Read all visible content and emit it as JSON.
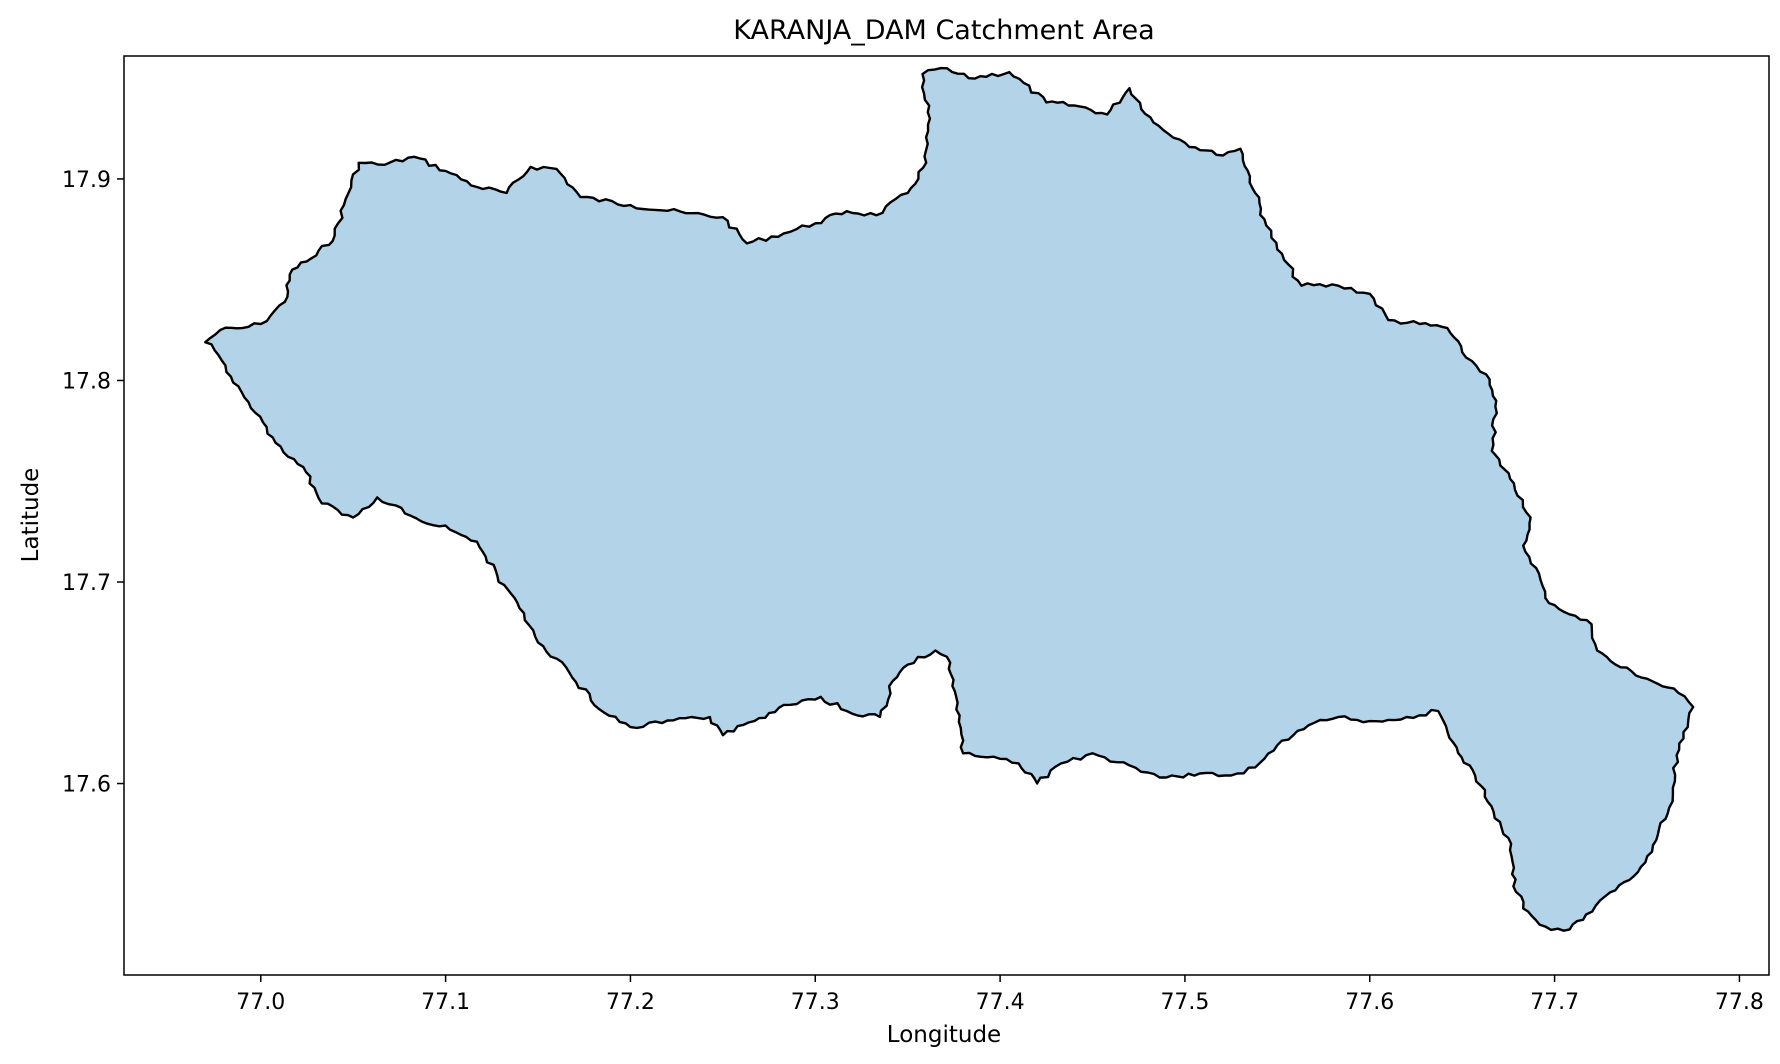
{
  "chart_data": {
    "type": "map",
    "title": "KARANJA_DAM Catchment Area",
    "xlabel": "Longitude",
    "ylabel": "Latitude",
    "xlim": [
      76.926,
      77.816
    ],
    "ylim": [
      17.505,
      17.961
    ],
    "xticks": [
      77.0,
      77.1,
      77.2,
      77.3,
      77.4,
      77.5,
      77.6,
      77.7,
      77.8
    ],
    "xtick_labels": [
      "77.0",
      "77.1",
      "77.2",
      "77.3",
      "77.4",
      "77.5",
      "77.6",
      "77.7",
      "77.8"
    ],
    "yticks": [
      17.6,
      17.7,
      17.8,
      17.9
    ],
    "ytick_labels": [
      "17.6",
      "17.7",
      "17.8",
      "17.9"
    ],
    "grid": false,
    "fill_color": "#b3d4e8",
    "edge_color": "#000000",
    "boundary": [
      [
        76.97,
        17.819
      ],
      [
        76.978,
        17.825
      ],
      [
        76.99,
        17.826
      ],
      [
        77.0,
        17.828
      ],
      [
        77.013,
        17.839
      ],
      [
        77.017,
        17.855
      ],
      [
        77.03,
        17.862
      ],
      [
        77.04,
        17.872
      ],
      [
        77.045,
        17.887
      ],
      [
        77.053,
        17.908
      ],
      [
        77.067,
        17.907
      ],
      [
        77.083,
        17.911
      ],
      [
        77.1,
        17.904
      ],
      [
        77.117,
        17.896
      ],
      [
        77.133,
        17.893
      ],
      [
        77.146,
        17.906
      ],
      [
        77.16,
        17.905
      ],
      [
        77.173,
        17.891
      ],
      [
        77.2,
        17.887
      ],
      [
        77.23,
        17.883
      ],
      [
        77.25,
        17.881
      ],
      [
        77.263,
        17.868
      ],
      [
        77.283,
        17.873
      ],
      [
        77.3,
        17.878
      ],
      [
        77.317,
        17.884
      ],
      [
        77.333,
        17.882
      ],
      [
        77.35,
        17.893
      ],
      [
        77.36,
        17.908
      ],
      [
        77.362,
        17.93
      ],
      [
        77.358,
        17.952
      ],
      [
        77.368,
        17.955
      ],
      [
        77.383,
        17.95
      ],
      [
        77.405,
        17.953
      ],
      [
        77.425,
        17.938
      ],
      [
        77.443,
        17.936
      ],
      [
        77.458,
        17.932
      ],
      [
        77.47,
        17.945
      ],
      [
        77.483,
        17.928
      ],
      [
        77.5,
        17.918
      ],
      [
        77.517,
        17.912
      ],
      [
        77.53,
        17.915
      ],
      [
        77.538,
        17.893
      ],
      [
        77.543,
        17.88
      ],
      [
        77.55,
        17.865
      ],
      [
        77.563,
        17.847
      ],
      [
        77.583,
        17.847
      ],
      [
        77.6,
        17.843
      ],
      [
        77.61,
        17.83
      ],
      [
        77.627,
        17.828
      ],
      [
        77.642,
        17.826
      ],
      [
        77.65,
        17.814
      ],
      [
        77.663,
        17.803
      ],
      [
        77.668,
        17.787
      ],
      [
        77.666,
        17.765
      ],
      [
        77.678,
        17.749
      ],
      [
        77.687,
        17.732
      ],
      [
        77.683,
        17.718
      ],
      [
        77.69,
        17.707
      ],
      [
        77.695,
        17.692
      ],
      [
        77.708,
        17.684
      ],
      [
        77.72,
        17.679
      ],
      [
        77.723,
        17.666
      ],
      [
        77.733,
        17.659
      ],
      [
        77.75,
        17.652
      ],
      [
        77.767,
        17.645
      ],
      [
        77.775,
        17.638
      ],
      [
        77.772,
        17.628
      ],
      [
        77.766,
        17.614
      ],
      [
        77.764,
        17.598
      ],
      [
        77.762,
        17.588
      ],
      [
        77.755,
        17.572
      ],
      [
        77.745,
        17.556
      ],
      [
        77.73,
        17.546
      ],
      [
        77.717,
        17.535
      ],
      [
        77.705,
        17.527
      ],
      [
        77.695,
        17.529
      ],
      [
        77.683,
        17.538
      ],
      [
        77.677,
        17.555
      ],
      [
        77.675,
        17.573
      ],
      [
        77.667,
        17.586
      ],
      [
        77.657,
        17.604
      ],
      [
        77.647,
        17.618
      ],
      [
        77.637,
        17.636
      ],
      [
        77.62,
        17.633
      ],
      [
        77.6,
        17.631
      ],
      [
        77.583,
        17.633
      ],
      [
        77.567,
        17.629
      ],
      [
        77.55,
        17.619
      ],
      [
        77.538,
        17.608
      ],
      [
        77.525,
        17.604
      ],
      [
        77.508,
        17.605
      ],
      [
        77.49,
        17.603
      ],
      [
        77.47,
        17.609
      ],
      [
        77.45,
        17.615
      ],
      [
        77.433,
        17.61
      ],
      [
        77.42,
        17.6
      ],
      [
        77.41,
        17.61
      ],
      [
        77.393,
        17.613
      ],
      [
        77.38,
        17.615
      ],
      [
        77.377,
        17.64
      ],
      [
        77.373,
        17.66
      ],
      [
        77.365,
        17.666
      ],
      [
        77.35,
        17.659
      ],
      [
        77.342,
        17.651
      ],
      [
        77.335,
        17.633
      ],
      [
        77.317,
        17.636
      ],
      [
        77.303,
        17.643
      ],
      [
        77.283,
        17.639
      ],
      [
        77.267,
        17.631
      ],
      [
        77.25,
        17.624
      ],
      [
        77.243,
        17.633
      ],
      [
        77.233,
        17.633
      ],
      [
        77.217,
        17.63
      ],
      [
        77.2,
        17.628
      ],
      [
        77.183,
        17.637
      ],
      [
        77.167,
        17.655
      ],
      [
        77.15,
        17.67
      ],
      [
        77.14,
        17.687
      ],
      [
        77.128,
        17.703
      ],
      [
        77.117,
        17.72
      ],
      [
        77.1,
        17.728
      ],
      [
        77.087,
        17.73
      ],
      [
        77.073,
        17.738
      ],
      [
        77.063,
        17.742
      ],
      [
        77.05,
        17.732
      ],
      [
        77.033,
        17.739
      ],
      [
        77.023,
        17.757
      ],
      [
        77.008,
        17.769
      ],
      [
        76.997,
        17.784
      ],
      [
        76.985,
        17.799
      ],
      [
        76.975,
        17.815
      ],
      [
        76.97,
        17.819
      ]
    ]
  }
}
